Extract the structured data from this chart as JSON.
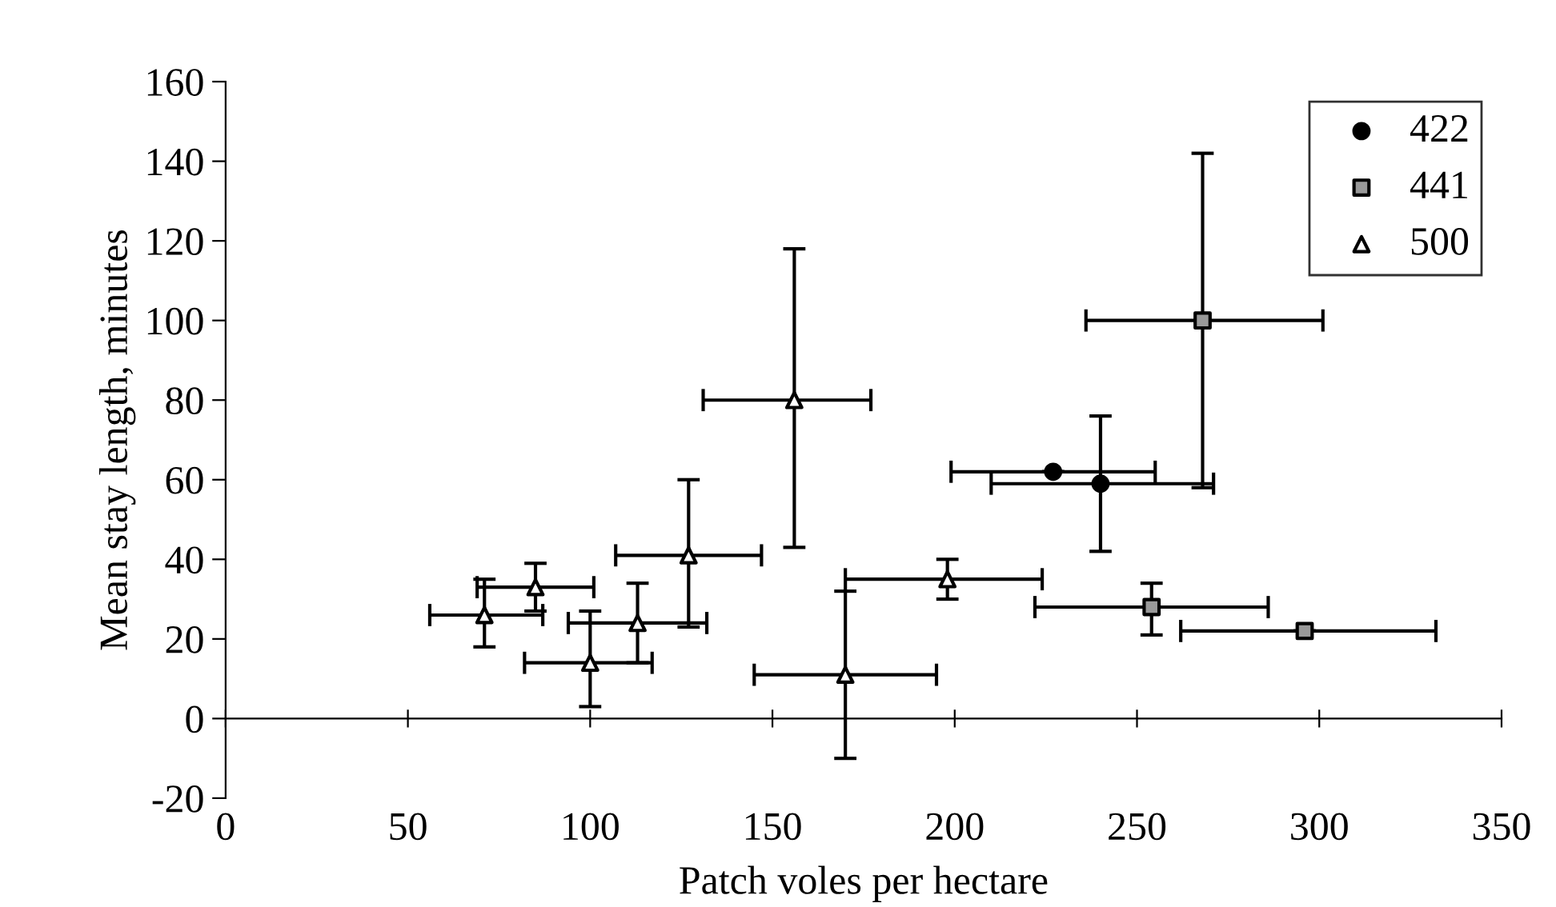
{
  "chart_data": {
    "type": "scatter",
    "xlabel": "Patch voles per hectare",
    "ylabel": "Mean stay length, minutes",
    "xlim": [
      0,
      350
    ],
    "xticks": [
      0,
      50,
      100,
      150,
      200,
      250,
      300,
      350
    ],
    "ylim": [
      -20,
      160
    ],
    "yticks": [
      -20,
      0,
      20,
      40,
      60,
      80,
      100,
      120,
      140,
      160
    ],
    "grid": false,
    "legend": "top right",
    "series": [
      {
        "name": "422",
        "color": "#000000",
        "marker": "circle",
        "x": [
          227,
          240
        ],
        "values": [
          62,
          59
        ],
        "errors": [
          null,
          [
            42,
            76
          ]
        ],
        "xerrors": [
          [
            199,
            255
          ],
          [
            210,
            271
          ]
        ]
      },
      {
        "name": "441",
        "color": "#999999",
        "marker": "square",
        "x": [
          268,
          254,
          296
        ],
        "values": [
          100,
          28,
          22
        ],
        "errors": [
          [
            58,
            142
          ],
          [
            21,
            34
          ],
          null
        ],
        "xerrors": [
          [
            236,
            301
          ],
          [
            222,
            286
          ],
          [
            262,
            332
          ]
        ]
      },
      {
        "name": "500",
        "color": "#ffffff",
        "marker": "triangle",
        "x": [
          71,
          85,
          100,
          113,
          127,
          156,
          170,
          198
        ],
        "values": [
          26,
          33,
          14,
          24,
          41,
          80,
          11,
          35
        ],
        "errors": [
          [
            18,
            35
          ],
          [
            27,
            39
          ],
          [
            3,
            27
          ],
          [
            14,
            34
          ],
          [
            23,
            60
          ],
          [
            43,
            118
          ],
          [
            -10,
            32
          ],
          [
            30,
            40
          ]
        ],
        "xerrors": [
          [
            56,
            87
          ],
          [
            69,
            101
          ],
          [
            82,
            117
          ],
          [
            94,
            132
          ],
          [
            107,
            147
          ],
          [
            131,
            177
          ],
          [
            145,
            195
          ],
          [
            170,
            224
          ]
        ]
      }
    ]
  }
}
